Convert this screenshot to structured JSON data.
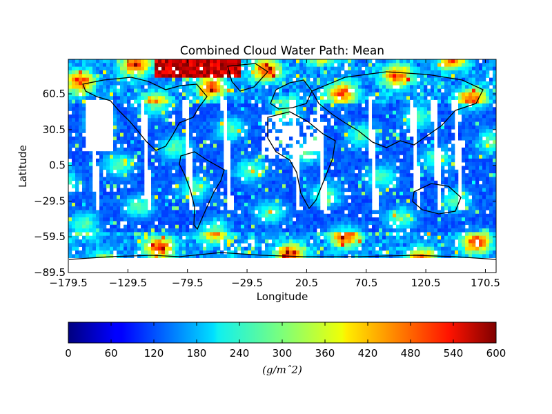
{
  "chart_data": [
    {
      "type": "heatmap",
      "title": "Combined Cloud Water Path: Mean",
      "xlabel": "Longitude",
      "ylabel": "Latitude",
      "xlim": [
        -179.5,
        179.5
      ],
      "ylim": [
        -89.5,
        89.5
      ],
      "xticks": [
        "-179.5",
        "-129.5",
        "-79.5",
        "-29.5",
        "20.5",
        "70.5",
        "120.5",
        "170.5"
      ],
      "xtick_values": [
        -179.5,
        -129.5,
        -79.5,
        -29.5,
        20.5,
        70.5,
        120.5,
        170.5
      ],
      "yticks": [
        "60.5",
        "30.5",
        "0.5",
        "-29.5",
        "-59.5",
        "-89.5"
      ],
      "ytick_values": [
        60.5,
        30.5,
        0.5,
        -29.5,
        -59.5,
        -89.5
      ],
      "colormap": "jet",
      "missing_data": "white",
      "overlay": "coastlines",
      "value_range": [
        0,
        600
      ]
    },
    {
      "type": "colorbar",
      "orientation": "horizontal",
      "range": [
        0,
        600
      ],
      "ticks": [
        "0",
        "60",
        "120",
        "180",
        "240",
        "300",
        "360",
        "420",
        "480",
        "540",
        "600"
      ],
      "tick_values": [
        0,
        60,
        120,
        180,
        240,
        300,
        360,
        420,
        480,
        540,
        600
      ],
      "label": "(g/mˆ2)"
    }
  ]
}
